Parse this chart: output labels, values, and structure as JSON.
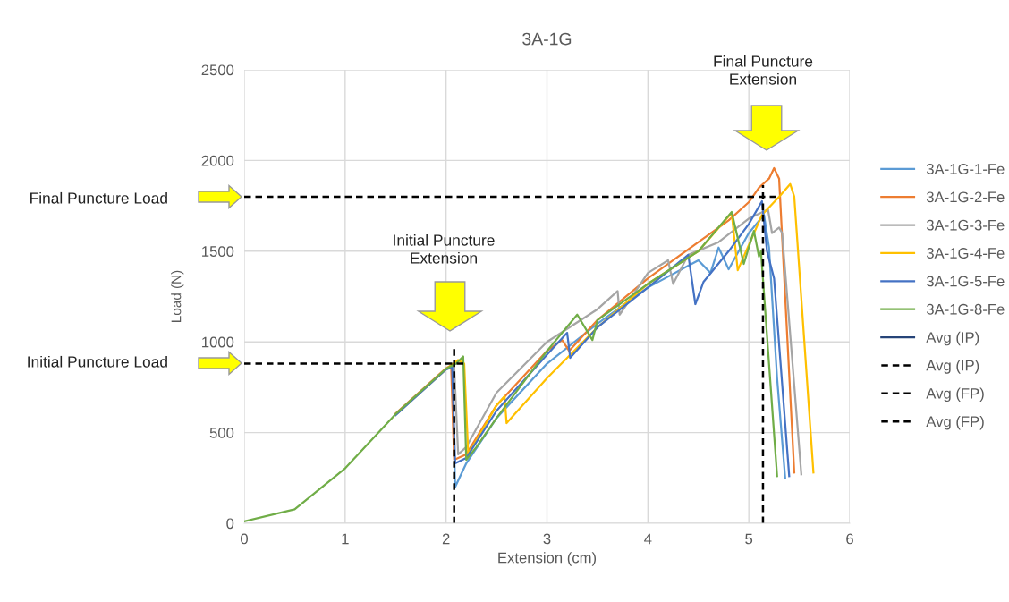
{
  "chart_data": {
    "type": "line",
    "title": "3A-1G",
    "xlabel": "Extension (cm)",
    "ylabel": "Load (N)",
    "xlim": [
      0,
      6
    ],
    "xticks": [
      0,
      1,
      2,
      3,
      4,
      5,
      6
    ],
    "ylim": [
      0,
      2500
    ],
    "yticks": [
      0,
      500,
      1000,
      1500,
      2000,
      2500
    ],
    "grid": true,
    "legend": "right",
    "marker": "none",
    "annotations": [
      "Final Puncture Load",
      "Initial Puncture Load",
      "Initial Puncture\nExtension",
      "Final Puncture\nExtension"
    ],
    "series": [
      {
        "name": "3A-1G-1-Fe",
        "color": "#5b9bd5",
        "x": [
          1.5,
          2.0,
          2.06,
          2.09,
          2.2,
          2.5,
          3,
          3.5,
          4,
          4.5,
          4.62,
          4.7,
          4.8,
          5.0,
          5.15,
          5.2,
          5.28,
          5.36
        ],
        "values": [
          600,
          850,
          860,
          200,
          330,
          580,
          880,
          1100,
          1300,
          1450,
          1380,
          1520,
          1400,
          1600,
          1700,
          1520,
          800,
          250
        ]
      },
      {
        "name": "3A-1G-2-Fe",
        "color": "#ed7d31",
        "x": [
          1.5,
          2.0,
          2.05,
          2.08,
          2.2,
          2.5,
          3,
          3.15,
          3.22,
          3.5,
          4,
          4.5,
          4.8,
          5.0,
          5.1,
          5.2,
          5.25,
          5.3,
          5.45
        ],
        "values": [
          605,
          855,
          870,
          350,
          380,
          650,
          950,
          1010,
          950,
          1120,
          1350,
          1550,
          1670,
          1770,
          1850,
          1900,
          1958,
          1900,
          280
        ]
      },
      {
        "name": "3A-1G-3-Fe",
        "color": "#a5a5a5",
        "x": [
          1.5,
          2.0,
          2.08,
          2.12,
          2.2,
          2.5,
          3,
          3.5,
          3.7,
          3.72,
          4,
          4.2,
          4.25,
          4.4,
          4.7,
          5.0,
          5.19,
          5.23,
          5.3,
          5.33,
          5.52
        ],
        "values": [
          600,
          850,
          870,
          380,
          420,
          720,
          1000,
          1180,
          1280,
          1150,
          1380,
          1450,
          1320,
          1480,
          1550,
          1680,
          1730,
          1600,
          1630,
          1600,
          270
        ]
      },
      {
        "name": "3A-1G-4-Fe",
        "color": "#ffc000",
        "x": [
          1.5,
          2.0,
          2.12,
          2.18,
          2.22,
          2.5,
          2.58,
          2.6,
          3,
          3.5,
          4,
          4.5,
          4.83,
          4.89,
          5.13,
          5.3,
          5.41,
          5.45,
          5.64
        ],
        "values": [
          598,
          850,
          900,
          880,
          380,
          650,
          700,
          552,
          800,
          1080,
          1320,
          1500,
          1711,
          1395,
          1700,
          1800,
          1870,
          1800,
          280
        ]
      },
      {
        "name": "3A-1G-5-Fe",
        "color": "#4472c4",
        "x": [
          1.5,
          2.0,
          2.06,
          2.09,
          2.2,
          2.5,
          3,
          3.2,
          3.23,
          3.5,
          4,
          4.4,
          4.47,
          4.55,
          4.8,
          5.0,
          5.13,
          5.18,
          5.25,
          5.4
        ],
        "values": [
          596,
          848,
          860,
          330,
          360,
          620,
          930,
          1050,
          912,
          1080,
          1300,
          1480,
          1208,
          1330,
          1500,
          1650,
          1775,
          1500,
          1350,
          260
        ]
      },
      {
        "name": "3A-1G-8-Fe",
        "color": "#70ad47",
        "x": [
          0,
          0.5,
          1,
          1.5,
          2.0,
          2.1,
          2.17,
          2.2,
          2.3,
          2.5,
          3,
          3.3,
          3.45,
          3.5,
          4,
          4.5,
          4.83,
          4.95,
          5.05,
          5.1,
          5.12,
          5.28
        ],
        "values": [
          10,
          77,
          303,
          602,
          852,
          880,
          920,
          350,
          420,
          580,
          950,
          1150,
          1010,
          1120,
          1320,
          1500,
          1716,
          1430,
          1612,
          1470,
          1500,
          260
        ]
      },
      {
        "name": "Avg (IP)",
        "color": "#264478"
      },
      {
        "name": "Avg (IP)",
        "color": "#000000",
        "line_style": "dashed",
        "x": [
          0,
          2.2,
          null,
          2.08,
          2.08
        ],
        "values": [
          880,
          880,
          null,
          960,
          0
        ]
      },
      {
        "name": "Avg (FP)",
        "color": "#000000",
        "line_style": "dashed",
        "x": [
          0,
          5.3
        ],
        "values": [
          1800,
          1800
        ]
      },
      {
        "name": "Avg (FP)",
        "color": "#000000",
        "line_style": "dashed",
        "x": [
          5.14,
          5.14
        ],
        "values": [
          0,
          1864
        ]
      }
    ]
  }
}
